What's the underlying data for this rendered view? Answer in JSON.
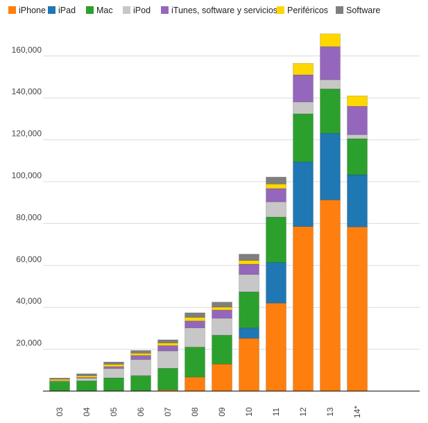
{
  "chart_data": {
    "type": "bar",
    "stacked": true,
    "categories": [
      "03",
      "04",
      "05",
      "06",
      "07",
      "08",
      "09",
      "10",
      "11",
      "12",
      "13",
      "14*"
    ],
    "series": [
      {
        "name": "iPhone",
        "color": "#ff7f0e",
        "values": [
          0,
          0,
          0,
          0,
          600,
          6700,
          12900,
          25200,
          42000,
          78600,
          91300,
          78400
        ]
      },
      {
        "name": "iPad",
        "color": "#1f77b4",
        "values": [
          0,
          0,
          0,
          0,
          0,
          0,
          0,
          5000,
          19400,
          30900,
          31800,
          24900
        ]
      },
      {
        "name": "Mac",
        "color": "#2ca02c",
        "values": [
          4500,
          4900,
          6300,
          7400,
          10300,
          14300,
          13800,
          17200,
          21700,
          22900,
          21200,
          17200
        ]
      },
      {
        "name": "iPod",
        "color": "#c7c7c7",
        "values": [
          350,
          1300,
          4500,
          7700,
          8300,
          9200,
          8100,
          8300,
          7300,
          5700,
          4400,
          2000
        ]
      },
      {
        "name": "iTunes, software y servicios",
        "color": "#9467bd",
        "values": [
          100,
          300,
          900,
          1900,
          2500,
          3300,
          3900,
          4900,
          6300,
          12900,
          15800,
          13500
        ]
      },
      {
        "name": "Periféricos",
        "color": "#ffd700",
        "values": [
          700,
          800,
          1100,
          1100,
          1300,
          1700,
          1400,
          1800,
          2200,
          5500,
          6100,
          5000
        ]
      },
      {
        "name": "Software",
        "color": "#7f7f7f",
        "values": [
          600,
          1000,
          1100,
          1300,
          1500,
          2200,
          2400,
          3000,
          3300,
          0,
          0,
          0
        ]
      }
    ],
    "yticks": [
      "20,000",
      "40,000",
      "60,000",
      "80,000",
      "100,000",
      "120,000",
      "140,000",
      "160,000"
    ],
    "ylim": [
      0,
      170000
    ],
    "grid": true,
    "legend": "top",
    "title": "",
    "xlabel": "",
    "ylabel": ""
  }
}
